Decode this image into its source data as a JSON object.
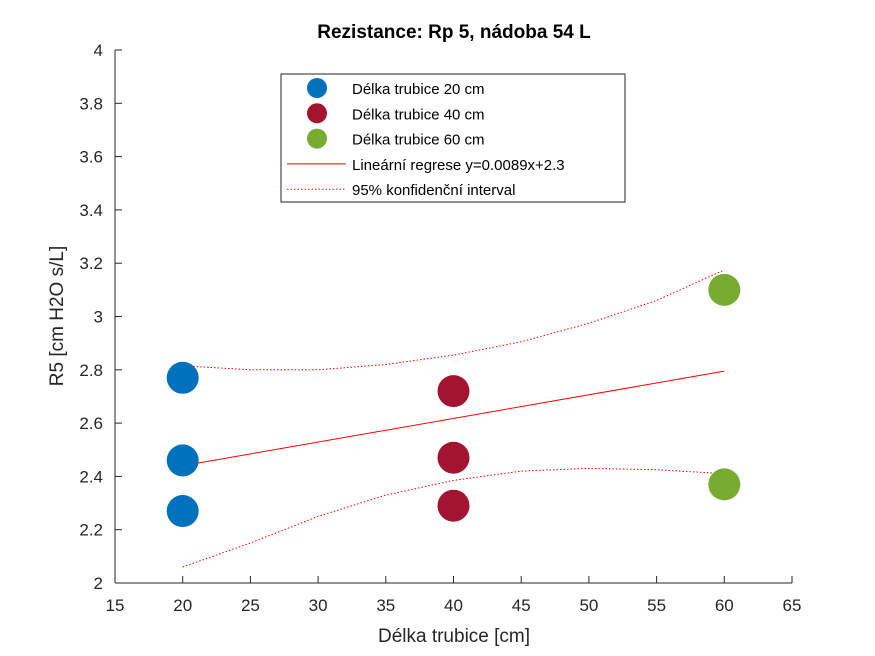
{
  "chart_data": {
    "type": "scatter",
    "title": "Rezistance: Rp 5, nádoba 54 L",
    "xlabel": "Délka trubice [cm]",
    "ylabel": "R5 [cm H2O s/L]",
    "xlim": [
      15,
      65
    ],
    "ylim": [
      2,
      4
    ],
    "xticks": [
      15,
      20,
      25,
      30,
      35,
      40,
      45,
      50,
      55,
      60,
      65
    ],
    "yticks": [
      2,
      2.2,
      2.4,
      2.6,
      2.8,
      3,
      3.2,
      3.4,
      3.6,
      3.8,
      4
    ],
    "grid": false,
    "legend_position": "top-center",
    "series": [
      {
        "name": "Délka trubice 20 cm",
        "color": "#0072BD",
        "x": [
          20,
          20,
          20
        ],
        "y": [
          2.77,
          2.46,
          2.27
        ]
      },
      {
        "name": "Délka trubice 40 cm",
        "color": "#A2142F",
        "x": [
          40,
          40,
          40
        ],
        "y": [
          2.72,
          2.47,
          2.29
        ]
      },
      {
        "name": "Délka trubice 60 cm",
        "color": "#77AC30",
        "x": [
          60,
          60
        ],
        "y": [
          3.1,
          2.37
        ]
      }
    ],
    "regression": {
      "name": "Lineární regrese y=0.0089x+2.3",
      "color": "#FF0000",
      "x": [
        20,
        60
      ],
      "y": [
        2.44,
        2.795
      ]
    },
    "confidence_interval": {
      "name": "95% konfidenční interval",
      "color": "#FF0000",
      "upper": {
        "x": [
          20,
          25,
          30,
          35,
          40,
          45,
          50,
          55,
          60
        ],
        "y": [
          2.815,
          2.8,
          2.8,
          2.82,
          2.855,
          2.905,
          2.975,
          3.06,
          3.175
        ]
      },
      "lower": {
        "x": [
          20,
          25,
          30,
          35,
          40,
          45,
          50,
          55,
          60
        ],
        "y": [
          2.06,
          2.15,
          2.25,
          2.33,
          2.385,
          2.42,
          2.43,
          2.425,
          2.41
        ]
      }
    }
  }
}
